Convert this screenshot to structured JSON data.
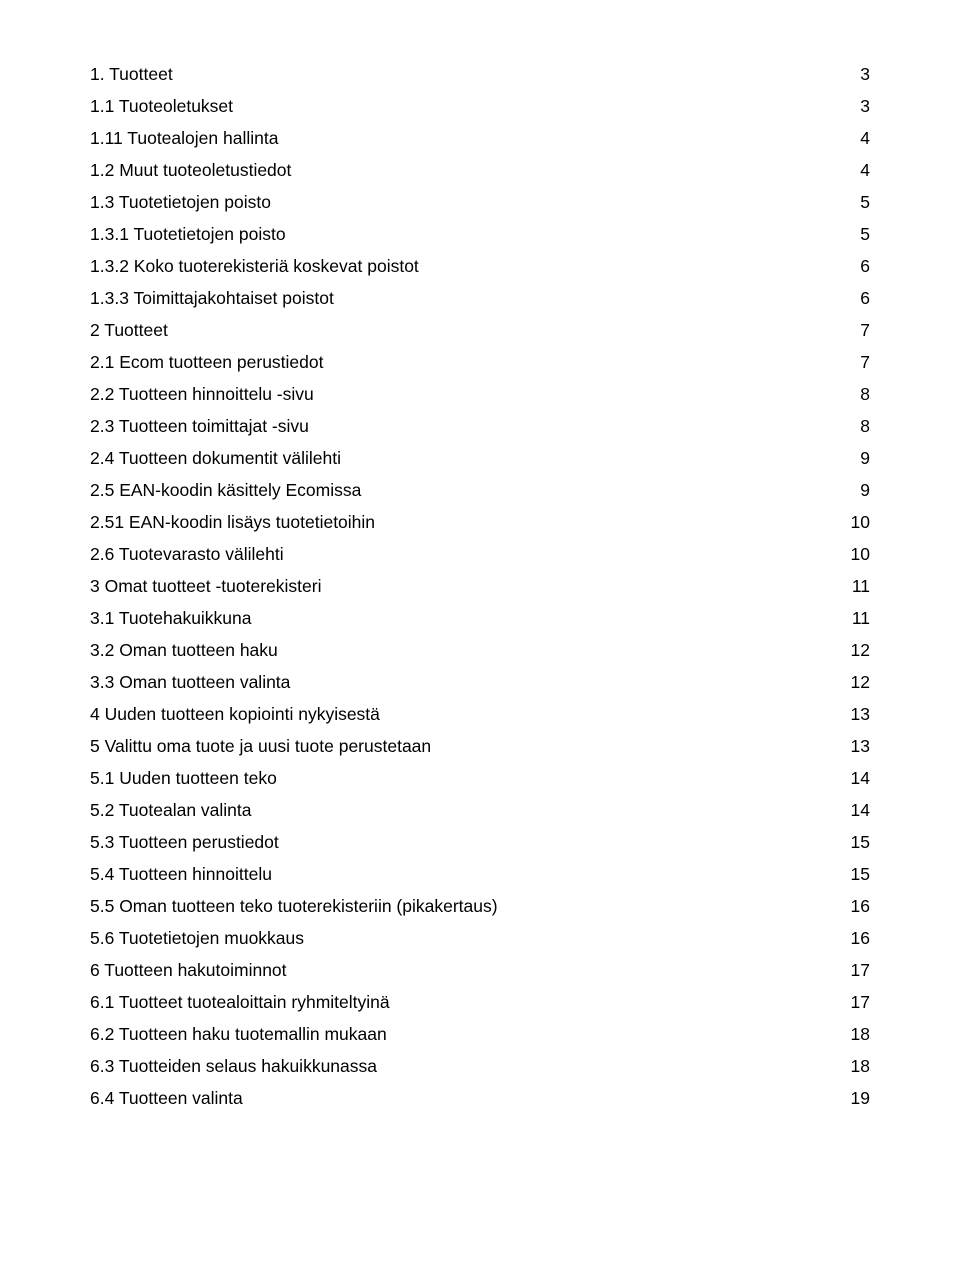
{
  "text_color": "#000000",
  "background_color": "#ffffff",
  "font_size_pt": 13,
  "toc": [
    {
      "title": "1. Tuotteet",
      "page": "3"
    },
    {
      "title": "1.1 Tuoteoletukset",
      "page": "3"
    },
    {
      "title": "1.11 Tuotealojen hallinta",
      "page": "4"
    },
    {
      "title": "1.2 Muut tuoteoletustiedot",
      "page": "4"
    },
    {
      "title": "1.3 Tuotetietojen poisto",
      "page": "5"
    },
    {
      "title": "1.3.1 Tuotetietojen poisto",
      "page": "5"
    },
    {
      "title": "1.3.2 Koko tuoterekisteriä koskevat poistot",
      "page": "6"
    },
    {
      "title": "1.3.3 Toimittajakohtaiset poistot",
      "page": "6"
    },
    {
      "title": "2 Tuotteet",
      "page": "7"
    },
    {
      "title": "2.1 Ecom tuotteen perustiedot",
      "page": "7"
    },
    {
      "title": "2.2 Tuotteen hinnoittelu -sivu",
      "page": "8"
    },
    {
      "title": "2.3 Tuotteen toimittajat -sivu",
      "page": "8"
    },
    {
      "title": "2.4 Tuotteen dokumentit välilehti",
      "page": "9"
    },
    {
      "title": "2.5 EAN-koodin käsittely Ecomissa",
      "page": "9"
    },
    {
      "title": "2.51 EAN-koodin lisäys tuotetietoihin",
      "page": "10"
    },
    {
      "title": "2.6 Tuotevarasto välilehti",
      "page": "10"
    },
    {
      "title": "3 Omat tuotteet  -tuoterekisteri",
      "page": "11"
    },
    {
      "title": "3.1 Tuotehakuikkuna",
      "page": "11"
    },
    {
      "title": "3.2 Oman tuotteen haku",
      "page": "12"
    },
    {
      "title": "3.3 Oman tuotteen valinta",
      "page": "12"
    },
    {
      "title": "4 Uuden tuotteen kopiointi nykyisestä",
      "page": "13"
    },
    {
      "title": "5 Valittu oma tuote ja uusi tuote perustetaan",
      "page": "13"
    },
    {
      "title": "5.1 Uuden tuotteen teko",
      "page": "14"
    },
    {
      "title": "5.2 Tuotealan valinta",
      "page": "14"
    },
    {
      "title": "5.3 Tuotteen perustiedot",
      "page": "15"
    },
    {
      "title": "5.4 Tuotteen hinnoittelu",
      "page": "15"
    },
    {
      "title": "5.5 Oman tuotteen teko tuoterekisteriin (pikakertaus)",
      "page": "16"
    },
    {
      "title": "5.6 Tuotetietojen muokkaus",
      "page": "16"
    },
    {
      "title": "6 Tuotteen hakutoiminnot",
      "page": "17"
    },
    {
      "title": "6.1 Tuotteet tuotealoittain ryhmiteltyinä ",
      "page": "17"
    },
    {
      "title": "6.2 Tuotteen haku tuotemallin mukaan ",
      "page": "18"
    },
    {
      "title": "6.3 Tuotteiden selaus hakuikkunassa",
      "page": "18"
    },
    {
      "title": "6.4 Tuotteen valinta",
      "page": "19"
    }
  ]
}
